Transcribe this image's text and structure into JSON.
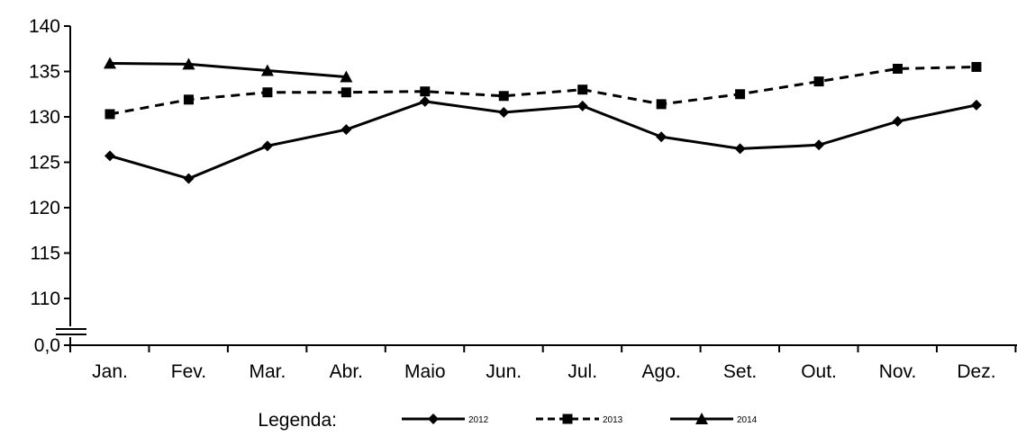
{
  "chart_data": {
    "type": "line",
    "title": "",
    "xlabel": "",
    "ylabel": "",
    "categories": [
      "Jan.",
      "Fev.",
      "Mar.",
      "Abr.",
      "Maio",
      "Jun.",
      "Jul.",
      "Ago.",
      "Set.",
      "Out.",
      "Nov.",
      "Dez."
    ],
    "y_ticks": [
      140,
      135,
      130,
      125,
      120,
      115,
      110
    ],
    "y_break_label": "0,0",
    "ylim": [
      105,
      140
    ],
    "axis_break": true,
    "grid": false,
    "legend_position": "bottom",
    "legend_title": "Legenda:",
    "series": [
      {
        "name": "2012",
        "line_style": "solid",
        "marker": "diamond",
        "values": [
          125.7,
          123.2,
          126.8,
          128.6,
          131.7,
          130.5,
          131.2,
          127.8,
          126.5,
          126.9,
          129.5,
          131.3
        ]
      },
      {
        "name": "2013",
        "line_style": "dashed",
        "marker": "square",
        "values": [
          130.3,
          131.9,
          132.7,
          132.7,
          132.8,
          132.3,
          133.0,
          131.4,
          132.5,
          133.9,
          135.3,
          135.5
        ]
      },
      {
        "name": "2014",
        "line_style": "solid",
        "marker": "triangle",
        "values": [
          135.9,
          135.8,
          135.1,
          134.4,
          null,
          null,
          null,
          null,
          null,
          null,
          null,
          null
        ]
      }
    ],
    "colors": {
      "line": "#000000",
      "background": "#ffffff"
    }
  }
}
